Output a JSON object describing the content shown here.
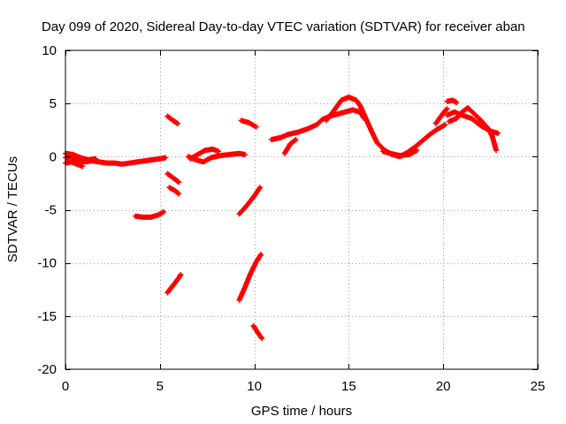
{
  "chart_data": {
    "type": "scatter",
    "title": "Day 099 of 2020, Sidereal Day-to-day VTEC variation (SDTVAR) for receiver aban",
    "xlabel": "GPS time / hours",
    "ylabel": "SDTVAR / TECUs",
    "xlim": [
      0,
      25
    ],
    "ylim": [
      -20,
      10
    ],
    "xticks": [
      0,
      5,
      10,
      15,
      20,
      25
    ],
    "yticks": [
      -20,
      -15,
      -10,
      -5,
      0,
      5,
      10
    ],
    "grid": true,
    "series_color": "#ff0000",
    "series": [
      {
        "name": "SDTVAR",
        "note": "dense arcs of '+' markers; each segment is a polyline of [GPS hour, TECU]",
        "segments": [
          [
            [
              0.0,
              -0.1
            ],
            [
              0.3,
              0.0
            ],
            [
              0.6,
              -0.3
            ],
            [
              1.0,
              -0.5
            ],
            [
              1.4,
              -0.4
            ],
            [
              1.8,
              -0.5
            ],
            [
              2.2,
              -0.6
            ],
            [
              2.6,
              -0.6
            ],
            [
              3.0,
              -0.7
            ],
            [
              3.4,
              -0.6
            ],
            [
              3.8,
              -0.5
            ],
            [
              4.2,
              -0.4
            ],
            [
              4.6,
              -0.3
            ],
            [
              5.0,
              -0.2
            ],
            [
              5.3,
              -0.1
            ]
          ],
          [
            [
              0.0,
              0.3
            ],
            [
              0.4,
              0.2
            ],
            [
              0.8,
              -0.1
            ],
            [
              1.2,
              -0.3
            ],
            [
              1.6,
              -0.2
            ]
          ],
          [
            [
              0.0,
              -0.6
            ],
            [
              0.3,
              -0.5
            ],
            [
              0.6,
              -0.7
            ],
            [
              0.9,
              -0.9
            ]
          ],
          [
            [
              3.7,
              -5.6
            ],
            [
              4.1,
              -5.7
            ],
            [
              4.5,
              -5.7
            ],
            [
              4.9,
              -5.5
            ],
            [
              5.2,
              -5.2
            ]
          ],
          [
            [
              5.4,
              3.8
            ],
            [
              5.7,
              3.4
            ],
            [
              5.95,
              3.1
            ]
          ],
          [
            [
              5.4,
              -1.6
            ],
            [
              5.7,
              -2.0
            ],
            [
              6.0,
              -2.4
            ]
          ],
          [
            [
              5.5,
              -2.9
            ],
            [
              5.8,
              -3.2
            ],
            [
              6.0,
              -3.5
            ]
          ],
          [
            [
              5.4,
              -12.8
            ],
            [
              5.7,
              -12.1
            ],
            [
              6.0,
              -11.4
            ],
            [
              6.1,
              -11.1
            ]
          ],
          [
            [
              6.6,
              -0.2
            ],
            [
              7.0,
              0.2
            ],
            [
              7.4,
              0.6
            ],
            [
              7.8,
              0.7
            ],
            [
              8.1,
              0.5
            ]
          ],
          [
            [
              6.5,
              0.0
            ],
            [
              6.9,
              -0.3
            ],
            [
              7.3,
              -0.5
            ],
            [
              7.7,
              -0.1
            ],
            [
              8.2,
              0.1
            ],
            [
              8.7,
              0.2
            ],
            [
              9.2,
              0.3
            ],
            [
              9.5,
              0.2
            ]
          ],
          [
            [
              9.3,
              3.4
            ],
            [
              9.7,
              3.2
            ],
            [
              10.1,
              2.8
            ]
          ],
          [
            [
              9.2,
              -5.4
            ],
            [
              9.6,
              -4.6
            ],
            [
              10.0,
              -3.7
            ],
            [
              10.3,
              -2.9
            ]
          ],
          [
            [
              9.2,
              -13.5
            ],
            [
              9.5,
              -12.3
            ],
            [
              9.8,
              -11.0
            ],
            [
              10.1,
              -9.9
            ],
            [
              10.35,
              -9.2
            ]
          ],
          [
            [
              9.95,
              -15.9
            ],
            [
              10.2,
              -16.6
            ],
            [
              10.4,
              -17.1
            ]
          ],
          [
            [
              10.9,
              1.6
            ],
            [
              11.4,
              1.8
            ],
            [
              11.8,
              2.1
            ],
            [
              12.3,
              2.3
            ],
            [
              12.8,
              2.6
            ],
            [
              13.3,
              3.0
            ],
            [
              13.6,
              3.5
            ],
            [
              14.0,
              3.8
            ],
            [
              14.4,
              4.0
            ],
            [
              14.8,
              4.2
            ],
            [
              15.2,
              4.4
            ],
            [
              15.6,
              4.2
            ],
            [
              15.8,
              3.6
            ]
          ],
          [
            [
              11.6,
              0.3
            ],
            [
              11.9,
              1.2
            ],
            [
              12.2,
              1.6
            ]
          ],
          [
            [
              13.8,
              3.4
            ],
            [
              14.2,
              4.3
            ],
            [
              14.6,
              5.3
            ],
            [
              15.0,
              5.6
            ],
            [
              15.4,
              5.3
            ],
            [
              15.6,
              4.8
            ],
            [
              15.9,
              3.6
            ],
            [
              16.2,
              2.4
            ],
            [
              16.5,
              1.3
            ],
            [
              16.9,
              0.6
            ],
            [
              17.3,
              0.2
            ],
            [
              17.7,
              0.0
            ],
            [
              18.1,
              0.4
            ],
            [
              18.5,
              0.9
            ],
            [
              18.9,
              1.5
            ],
            [
              19.3,
              2.1
            ],
            [
              19.7,
              2.6
            ],
            [
              20.1,
              3.0
            ]
          ],
          [
            [
              16.8,
              0.5
            ],
            [
              17.2,
              0.3
            ],
            [
              17.7,
              0.1
            ],
            [
              18.2,
              0.2
            ],
            [
              18.6,
              0.6
            ]
          ],
          [
            [
              19.6,
              3.1
            ],
            [
              19.8,
              3.6
            ],
            [
              20.0,
              4.1
            ],
            [
              20.2,
              4.5
            ]
          ],
          [
            [
              20.2,
              5.2
            ],
            [
              20.5,
              5.3
            ],
            [
              20.7,
              5.1
            ]
          ],
          [
            [
              20.3,
              3.3
            ],
            [
              20.7,
              3.6
            ],
            [
              21.0,
              4.2
            ],
            [
              21.3,
              4.6
            ],
            [
              21.6,
              4.1
            ],
            [
              22.0,
              3.4
            ],
            [
              22.4,
              2.6
            ],
            [
              22.6,
              1.9
            ],
            [
              22.8,
              0.6
            ]
          ],
          [
            [
              20.2,
              3.9
            ],
            [
              20.6,
              4.2
            ],
            [
              21.0,
              3.9
            ],
            [
              21.5,
              3.6
            ],
            [
              22.0,
              2.9
            ],
            [
              22.5,
              2.4
            ],
            [
              22.9,
              2.2
            ]
          ]
        ]
      }
    ]
  }
}
